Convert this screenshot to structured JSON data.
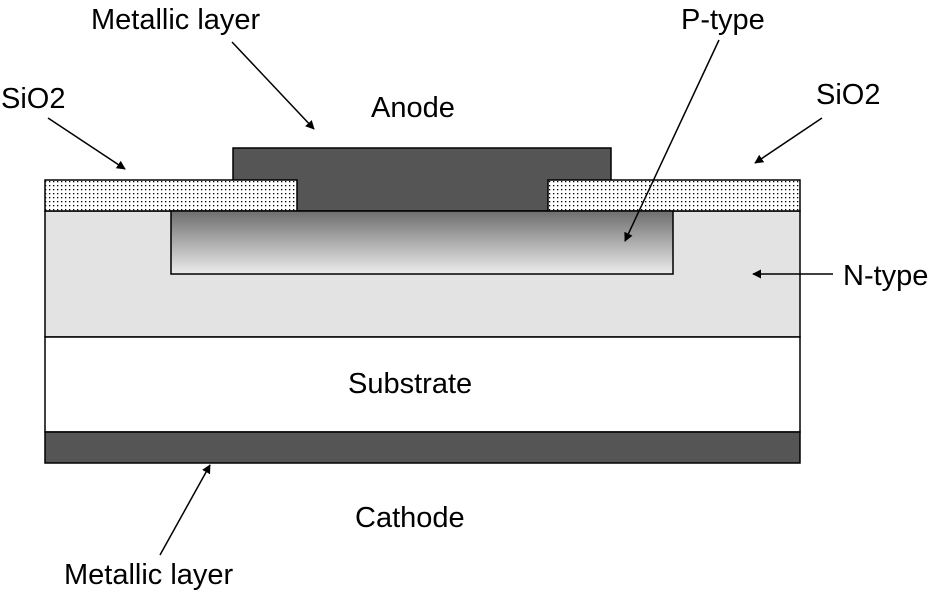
{
  "labels": {
    "metallic_layer_top": "Metallic layer",
    "p_type": "P-type",
    "sio2_left": "SiO2",
    "sio2_right": "SiO2",
    "anode": "Anode",
    "n_type": "N-type",
    "substrate": "Substrate",
    "cathode": "Cathode",
    "metallic_layer_bottom": "Metallic layer"
  },
  "colors": {
    "metal": "#555555",
    "n_type_fill": "#e3e3e3",
    "substrate_fill": "#ffffff",
    "sio2_fill": "#ffffff",
    "sio2_dots": "#000000",
    "p_gradient_top": "#6e6e6e",
    "p_gradient_bottom": "#ececec",
    "outline": "#000000"
  }
}
